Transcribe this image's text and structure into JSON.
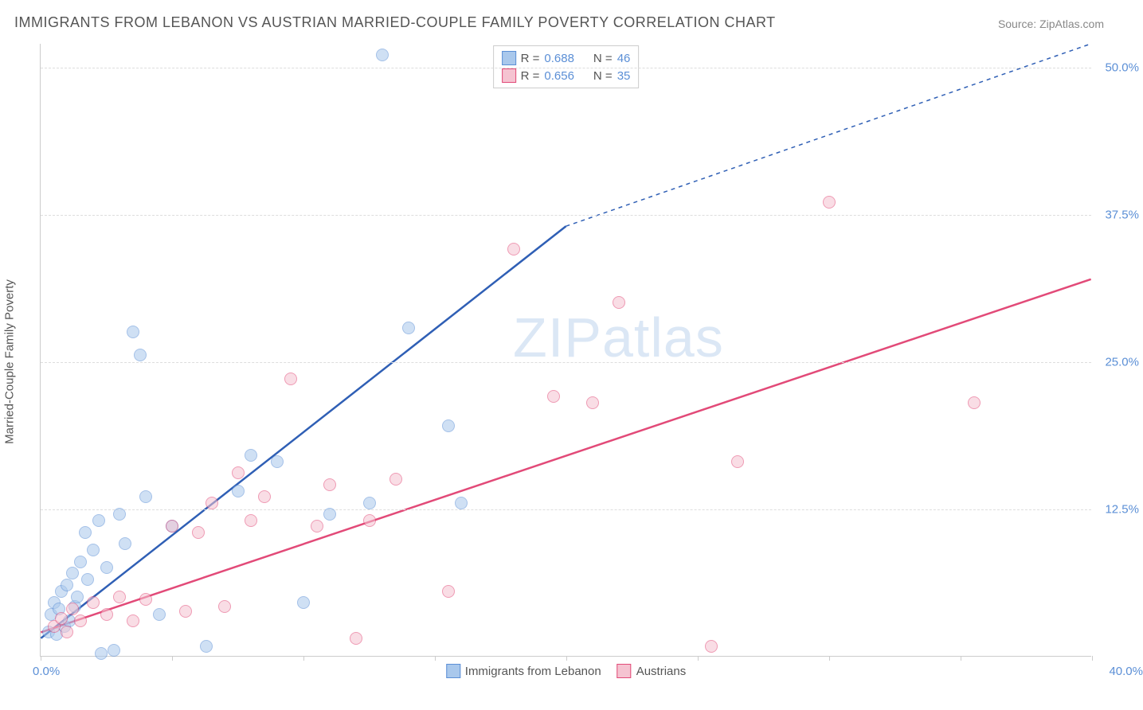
{
  "title": "IMMIGRANTS FROM LEBANON VS AUSTRIAN MARRIED-COUPLE FAMILY POVERTY CORRELATION CHART",
  "source": "Source: ZipAtlas.com",
  "watermark": "ZIPatlas",
  "y_axis_label": "Married-Couple Family Poverty",
  "chart": {
    "type": "scatter",
    "xlim": [
      0,
      40
    ],
    "ylim": [
      0,
      52
    ],
    "x_ticks": [
      0,
      5,
      10,
      15,
      20,
      25,
      30,
      35,
      40
    ],
    "x_tick_label_left": "0.0%",
    "x_tick_label_right": "40.0%",
    "y_gridlines": [
      12.5,
      25.0,
      37.5,
      50.0
    ],
    "y_tick_labels": [
      "12.5%",
      "25.0%",
      "37.5%",
      "50.0%"
    ],
    "background_color": "#ffffff",
    "grid_color": "#dddddd",
    "axis_color": "#cccccc",
    "tick_label_color": "#5b8fd6",
    "marker_radius": 8,
    "marker_opacity": 0.55,
    "series": [
      {
        "name": "Immigrants from Lebanon",
        "fill_color": "#a9c8ec",
        "stroke_color": "#5b8fd6",
        "r_value": "0.688",
        "n_value": "46",
        "trend": {
          "slope": 1.75,
          "intercept": 1.5,
          "color": "#2f5fb5",
          "width": 2.5,
          "dash_after_x": 20
        },
        "points": [
          [
            0.3,
            2.0
          ],
          [
            0.4,
            3.5
          ],
          [
            0.5,
            4.5
          ],
          [
            0.6,
            1.8
          ],
          [
            0.7,
            4.0
          ],
          [
            0.8,
            5.5
          ],
          [
            0.9,
            2.5
          ],
          [
            1.0,
            6.0
          ],
          [
            1.1,
            3.0
          ],
          [
            1.2,
            7.0
          ],
          [
            1.3,
            4.2
          ],
          [
            1.4,
            5.0
          ],
          [
            1.5,
            8.0
          ],
          [
            1.7,
            10.5
          ],
          [
            1.8,
            6.5
          ],
          [
            2.0,
            9.0
          ],
          [
            2.2,
            11.5
          ],
          [
            2.3,
            0.2
          ],
          [
            2.5,
            7.5
          ],
          [
            2.8,
            0.5
          ],
          [
            3.0,
            12.0
          ],
          [
            3.2,
            9.5
          ],
          [
            3.5,
            27.5
          ],
          [
            3.8,
            25.5
          ],
          [
            4.0,
            13.5
          ],
          [
            4.5,
            3.5
          ],
          [
            5.0,
            11.0
          ],
          [
            6.3,
            0.8
          ],
          [
            7.5,
            14.0
          ],
          [
            8.0,
            17.0
          ],
          [
            9.0,
            16.5
          ],
          [
            10.0,
            4.5
          ],
          [
            11.0,
            12.0
          ],
          [
            12.5,
            13.0
          ],
          [
            13.0,
            51.0
          ],
          [
            14.0,
            27.8
          ],
          [
            15.5,
            19.5
          ],
          [
            16.0,
            13.0
          ]
        ]
      },
      {
        "name": "Austrians",
        "fill_color": "#f5c3d1",
        "stroke_color": "#e24a78",
        "r_value": "0.656",
        "n_value": "35",
        "trend": {
          "slope": 0.75,
          "intercept": 2.0,
          "color": "#e24a78",
          "width": 2.5,
          "dash_after_x": 100
        },
        "points": [
          [
            0.5,
            2.5
          ],
          [
            0.8,
            3.2
          ],
          [
            1.0,
            2.0
          ],
          [
            1.2,
            4.0
          ],
          [
            1.5,
            3.0
          ],
          [
            2.0,
            4.5
          ],
          [
            2.5,
            3.5
          ],
          [
            3.0,
            5.0
          ],
          [
            3.5,
            3.0
          ],
          [
            4.0,
            4.8
          ],
          [
            5.0,
            11.0
          ],
          [
            5.5,
            3.8
          ],
          [
            6.0,
            10.5
          ],
          [
            6.5,
            13.0
          ],
          [
            7.0,
            4.2
          ],
          [
            7.5,
            15.5
          ],
          [
            8.0,
            11.5
          ],
          [
            8.5,
            13.5
          ],
          [
            9.5,
            23.5
          ],
          [
            10.5,
            11.0
          ],
          [
            11.0,
            14.5
          ],
          [
            12.0,
            1.5
          ],
          [
            12.5,
            11.5
          ],
          [
            13.5,
            15.0
          ],
          [
            15.5,
            5.5
          ],
          [
            18.0,
            34.5
          ],
          [
            19.5,
            22.0
          ],
          [
            21.0,
            21.5
          ],
          [
            22.0,
            30.0
          ],
          [
            25.5,
            0.8
          ],
          [
            26.5,
            16.5
          ],
          [
            30.0,
            38.5
          ],
          [
            35.5,
            21.5
          ]
        ]
      }
    ]
  },
  "legend_top": {
    "r_label": "R =",
    "n_label": "N ="
  },
  "legend_bottom": [
    {
      "label": "Immigrants from Lebanon",
      "fill": "#a9c8ec",
      "stroke": "#5b8fd6"
    },
    {
      "label": "Austrians",
      "fill": "#f5c3d1",
      "stroke": "#e24a78"
    }
  ]
}
